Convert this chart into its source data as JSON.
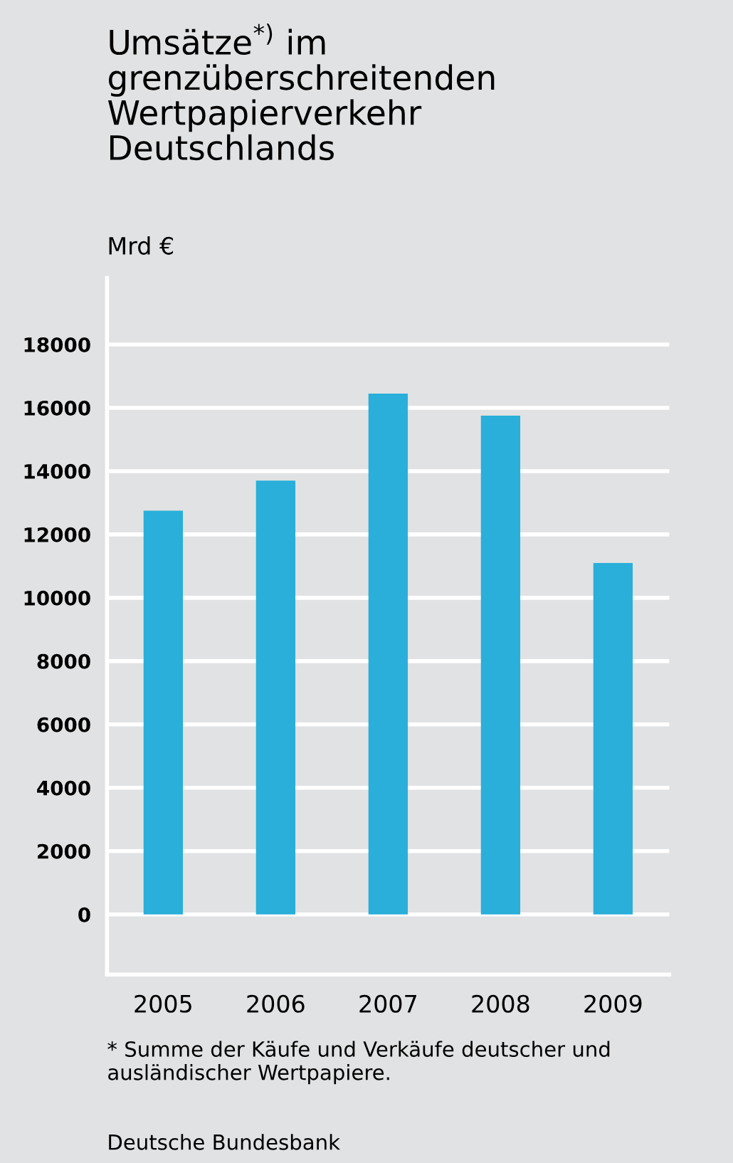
{
  "chart_data": {
    "type": "bar",
    "title": "Umsätze$^{*)}$ im\ngrenzüberschreitenden\nWertpapierverkehr\nDeutschlands",
    "ylabel": "Mrd €",
    "categories": [
      "2005",
      "2006",
      "2007",
      "2008",
      "2009"
    ],
    "values": [
      12750,
      13700,
      16450,
      15750,
      11100
    ],
    "color": "#29afd9",
    "ylim": [
      -1900,
      20100
    ],
    "yticks": [
      0,
      2000,
      4000,
      6000,
      8000,
      10000,
      12000,
      14000,
      16000,
      18000
    ],
    "grid": "y",
    "annotations": [
      "* Summe der Käufe und Verkäufe deutscher und ausländischer Wertpapiere.",
      "Deutsche Bundesbank"
    ]
  }
}
